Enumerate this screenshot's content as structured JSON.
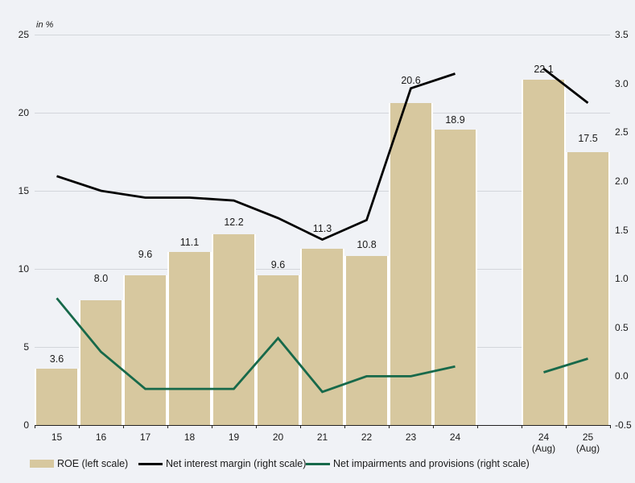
{
  "unit_label": "in %",
  "colors": {
    "background": "#f0f2f6",
    "bar": "#d7c89f",
    "nim_line": "#000000",
    "imp_line": "#17694a",
    "grid": "#d3d6db",
    "axis": "#222222",
    "text": "#1a1a1a"
  },
  "chart_data": {
    "type": "bar",
    "subtype": "combo bar + two lines, dual axis, split into two groups",
    "categories": [
      "15",
      "16",
      "17",
      "18",
      "19",
      "20",
      "21",
      "22",
      "23",
      "24",
      "24 (Aug)",
      "25 (Aug)"
    ],
    "group_break_after_index": 9,
    "series": [
      {
        "name": "ROE (left scale)",
        "type": "bar",
        "axis": "left",
        "values": [
          3.6,
          8.0,
          9.6,
          11.1,
          12.2,
          9.6,
          11.3,
          10.8,
          20.6,
          18.9,
          22.1,
          17.5
        ],
        "labels": [
          "3.6",
          "8.0",
          "9.6",
          "11.1",
          "12.2",
          "9.6",
          "11.3",
          "10.8",
          "20.6",
          "18.9",
          "22.1",
          "17.5"
        ]
      },
      {
        "name": "Net interest margin (right scale)",
        "type": "line",
        "axis": "right",
        "values": [
          2.05,
          1.9,
          1.83,
          1.83,
          1.8,
          1.62,
          1.4,
          1.6,
          2.95,
          3.1,
          3.15,
          2.8
        ]
      },
      {
        "name": "Net impairments and provisions (right scale)",
        "type": "line",
        "axis": "right",
        "values": [
          0.8,
          0.25,
          -0.13,
          -0.13,
          -0.13,
          0.39,
          -0.16,
          0.0,
          0.0,
          0.1,
          0.04,
          0.18
        ]
      }
    ],
    "left_axis": {
      "range": [
        0,
        25
      ],
      "tick_labels": [
        "0",
        "5",
        "10",
        "15",
        "20",
        "25"
      ],
      "ticks": [
        0,
        5,
        10,
        15,
        20,
        25
      ]
    },
    "right_axis": {
      "range": [
        -0.5,
        3.5
      ],
      "tick_labels": [
        "-0.5",
        "0.0",
        "0.5",
        "1.0",
        "1.5",
        "2.0",
        "2.5",
        "3.0",
        "3.5"
      ],
      "ticks": [
        -0.5,
        0.0,
        0.5,
        1.0,
        1.5,
        2.0,
        2.5,
        3.0,
        3.5
      ]
    },
    "x_labels_left_group": [
      "15",
      "16",
      "17",
      "18",
      "19",
      "20",
      "21",
      "22",
      "23",
      "24"
    ],
    "x_labels_right_group": [
      [
        "24",
        "(Aug)"
      ],
      [
        "25",
        "(Aug)"
      ]
    ],
    "grid": "horizontal gridlines at left-scale ticks",
    "legend_position": "bottom"
  },
  "legend": [
    {
      "label": "ROE (left scale)",
      "swatch": "bar"
    },
    {
      "label": "Net interest margin (right scale)",
      "swatch": "line-black"
    },
    {
      "label": "Net impairments and provisions (right scale)",
      "swatch": "line-green"
    }
  ]
}
